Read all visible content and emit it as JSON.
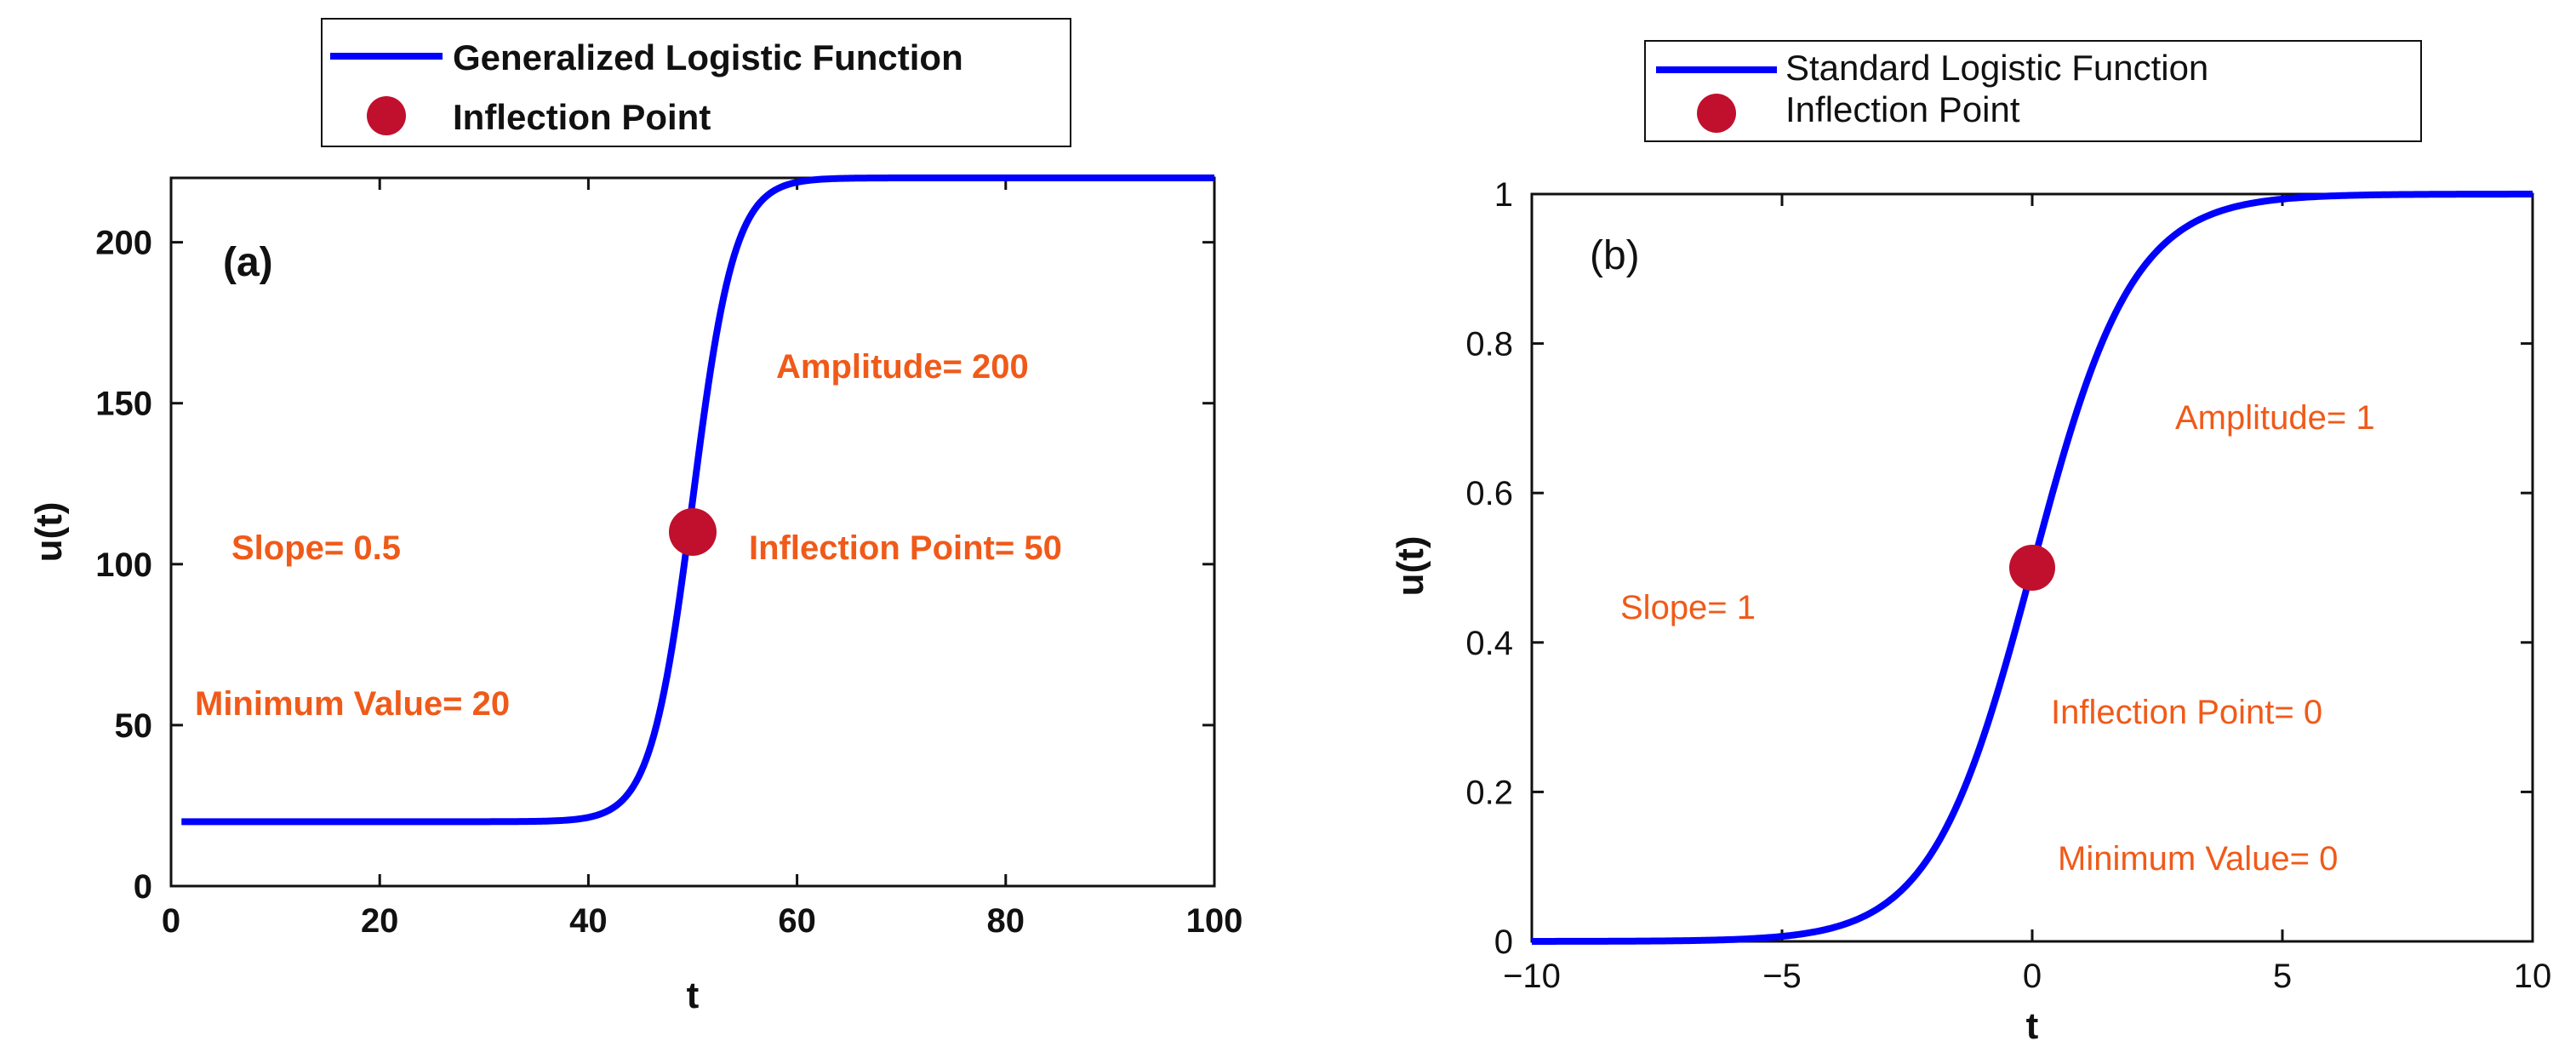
{
  "chart_data": [
    {
      "type": "line",
      "panel_label": "(a)",
      "xlabel": "t",
      "ylabel": "u(t)",
      "xlim": [
        0,
        100
      ],
      "ylim": [
        0,
        220
      ],
      "xticks": [
        0,
        20,
        40,
        60,
        80,
        100
      ],
      "yticks": [
        0,
        50,
        100,
        150,
        200
      ],
      "xtick_labels": [
        "0",
        "20",
        "40",
        "60",
        "80",
        "100"
      ],
      "ytick_labels": [
        "0",
        "50",
        "100",
        "150",
        "200"
      ],
      "grid": false,
      "legend": {
        "placement": "top-center outside",
        "entries": [
          "Generalized Logistic Function",
          "Inflection Point"
        ]
      },
      "series": [
        {
          "name": "Generalized Logistic Function",
          "function": "logistic",
          "minimum": 20,
          "amplitude": 200,
          "slope": 0.5,
          "midpoint": 50,
          "x_range": [
            1,
            100
          ],
          "color": "#0000ff"
        }
      ],
      "inflection_point": {
        "x": 50,
        "y": 110,
        "color": "#c0102e"
      },
      "annotations": [
        "Amplitude= 200",
        "Slope= 0.5",
        "Inflection Point= 50",
        "Minimum Value= 20"
      ]
    },
    {
      "type": "line",
      "panel_label": "(b)",
      "xlabel": "t",
      "ylabel": "u(t)",
      "xlim": [
        -10,
        10
      ],
      "ylim": [
        0,
        1
      ],
      "xticks": [
        -10,
        -5,
        0,
        5,
        10
      ],
      "yticks": [
        0,
        0.2,
        0.4,
        0.6,
        0.8,
        1
      ],
      "xtick_labels": [
        "−10",
        "−5",
        "0",
        "5",
        "10"
      ],
      "ytick_labels": [
        "0",
        "0.2",
        "0.4",
        "0.6",
        "0.8",
        "1"
      ],
      "grid": false,
      "legend": {
        "placement": "top-center outside",
        "entries": [
          "Standard Logistic Function",
          "Inflection Point"
        ]
      },
      "series": [
        {
          "name": "Standard Logistic Function",
          "function": "logistic",
          "minimum": 0,
          "amplitude": 1,
          "slope": 1,
          "midpoint": 0,
          "x_range": [
            -10,
            10
          ],
          "color": "#0000ff"
        }
      ],
      "inflection_point": {
        "x": 0,
        "y": 0.5,
        "color": "#c0102e"
      },
      "annotations": [
        "Amplitude= 1",
        "Slope= 1",
        "Inflection Point= 0",
        "Minimum Value= 0"
      ]
    }
  ],
  "colors": {
    "curve": "#0000ff",
    "marker": "#c0102e",
    "annotation": "#f05a19",
    "axis": "#111111"
  }
}
